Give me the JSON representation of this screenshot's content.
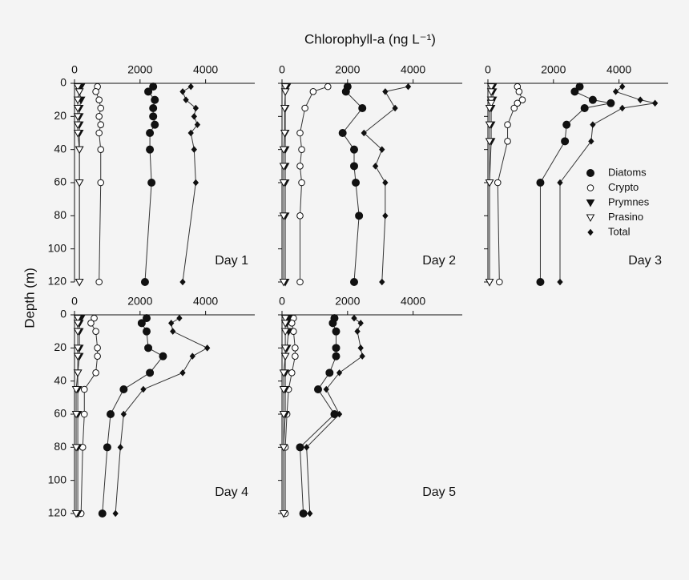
{
  "chart_data": {
    "type": "profile",
    "title": "Chlorophyll-a (ng L⁻¹)",
    "ylabel": "Depth (m)",
    "xlim": [
      0,
      5500
    ],
    "xticks": [
      0,
      2000,
      4000
    ],
    "ylim": [
      0,
      120
    ],
    "yticks": [
      0,
      20,
      40,
      60,
      80,
      100,
      120
    ],
    "y_inverted": true,
    "legend": "right",
    "legend_panel": 2,
    "series": [
      {
        "name": "Diatoms",
        "marker": "circle",
        "filled": true,
        "color": "#111111"
      },
      {
        "name": "Crypto",
        "marker": "circle",
        "filled": false,
        "color": "#111111"
      },
      {
        "name": "Prymnes",
        "marker": "triangle-down",
        "filled": true,
        "color": "#111111"
      },
      {
        "name": "Prasino",
        "marker": "triangle-down",
        "filled": false,
        "color": "#111111"
      },
      {
        "name": "Total",
        "marker": "diamond",
        "filled": true,
        "color": "#111111"
      }
    ],
    "panels": [
      {
        "label": "Day 1",
        "depth": [
          2,
          5,
          10,
          15,
          20,
          25,
          30,
          40,
          60,
          120
        ],
        "values": [
          [
            2400,
            2250,
            2450,
            2400,
            2400,
            2450,
            2300,
            2300,
            2350,
            2150
          ],
          [
            700,
            650,
            750,
            800,
            750,
            800,
            750,
            800,
            800,
            750
          ],
          [
            200,
            150,
            200,
            150,
            150,
            150,
            150,
            150,
            150,
            150
          ],
          [
            100,
            150,
            100,
            100,
            100,
            100,
            100,
            150,
            150,
            150
          ],
          [
            3550,
            3300,
            3400,
            3700,
            3650,
            3750,
            3550,
            3650,
            3700,
            3300
          ]
        ]
      },
      {
        "label": "Day 2",
        "depth": [
          2,
          5,
          15,
          30,
          40,
          50,
          60,
          80,
          120
        ],
        "values": [
          [
            2000,
            1950,
            2450,
            1850,
            2200,
            2200,
            2250,
            2350,
            2200
          ],
          [
            1400,
            950,
            700,
            550,
            600,
            550,
            600,
            550,
            550
          ],
          [
            150,
            100,
            100,
            100,
            100,
            100,
            100,
            100,
            100
          ],
          [
            100,
            100,
            80,
            80,
            50,
            50,
            50,
            50,
            50
          ],
          [
            3850,
            3150,
            3450,
            2500,
            3050,
            2850,
            3150,
            3150,
            3050
          ]
        ]
      },
      {
        "label": "Day 3",
        "depth": [
          2,
          5,
          10,
          12,
          15,
          25,
          35,
          60,
          120
        ],
        "values": [
          [
            2800,
            2650,
            3200,
            3750,
            2950,
            2400,
            2350,
            1600,
            1600
          ],
          [
            900,
            950,
            1050,
            900,
            800,
            600,
            600,
            300,
            350
          ],
          [
            150,
            150,
            150,
            100,
            100,
            100,
            100,
            50,
            50
          ],
          [
            100,
            100,
            100,
            100,
            50,
            50,
            50,
            50,
            50
          ],
          [
            4100,
            3900,
            4650,
            5100,
            4100,
            3200,
            3150,
            2200,
            2200
          ]
        ]
      },
      {
        "label": "Day 4",
        "depth": [
          2,
          5,
          10,
          20,
          25,
          35,
          45,
          60,
          80,
          120
        ],
        "values": [
          [
            2200,
            2050,
            2200,
            2250,
            2700,
            2300,
            1500,
            1100,
            1000,
            850
          ],
          [
            600,
            500,
            650,
            700,
            700,
            650,
            300,
            300,
            250,
            200
          ],
          [
            200,
            150,
            150,
            150,
            150,
            100,
            100,
            100,
            100,
            100
          ],
          [
            100,
            100,
            100,
            100,
            100,
            100,
            50,
            50,
            50,
            50
          ],
          [
            3200,
            2950,
            3000,
            4050,
            3600,
            3300,
            2100,
            1500,
            1400,
            1250
          ]
        ]
      },
      {
        "label": "Day 5",
        "depth": [
          2,
          5,
          10,
          20,
          25,
          35,
          45,
          60,
          80,
          120
        ],
        "values": [
          [
            1600,
            1550,
            1650,
            1650,
            1650,
            1450,
            1100,
            1600,
            550,
            650
          ],
          [
            350,
            300,
            350,
            400,
            400,
            300,
            200,
            150,
            100,
            100
          ],
          [
            200,
            150,
            200,
            150,
            100,
            100,
            100,
            100,
            50,
            50
          ],
          [
            100,
            100,
            100,
            100,
            100,
            50,
            50,
            50,
            50,
            50
          ],
          [
            2200,
            2400,
            2300,
            2400,
            2450,
            1750,
            1350,
            1750,
            750,
            850
          ]
        ]
      }
    ]
  }
}
